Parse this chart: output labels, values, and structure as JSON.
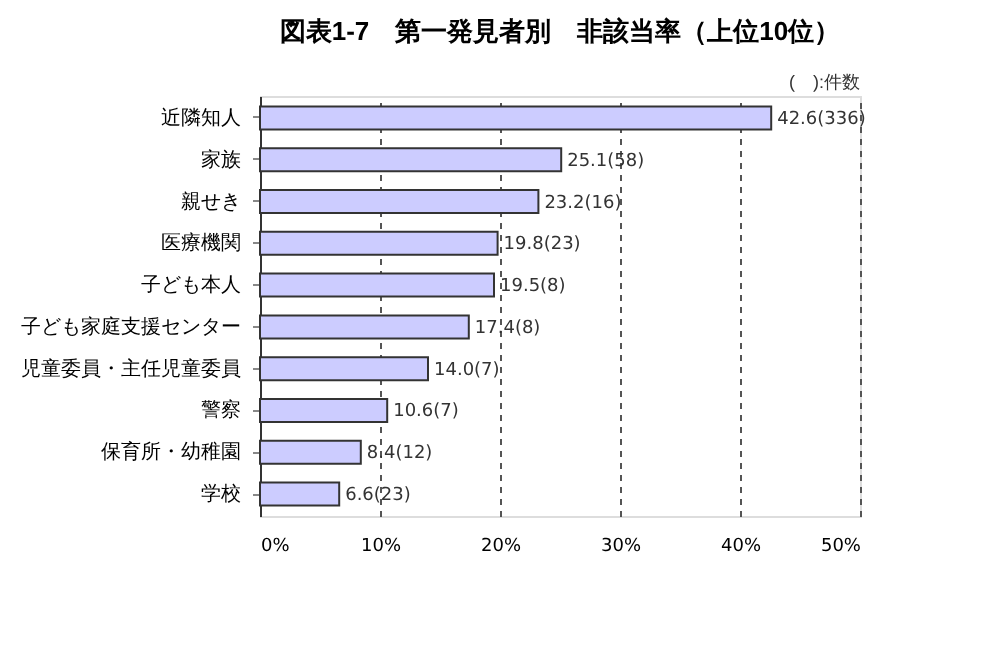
{
  "chart_data": {
    "type": "bar",
    "orientation": "horizontal",
    "title": "図表1-7　第一発見者別　非該当率（上位10位）",
    "categories": [
      "近隣知人",
      "家族",
      "親せき",
      "医療機関",
      "子ども本人",
      "子ども家庭支援センター",
      "児童委員・主任児童委員",
      "警察",
      "保育所・幼稚園",
      "学校"
    ],
    "values": [
      42.6,
      25.1,
      23.2,
      19.8,
      19.5,
      17.4,
      14.0,
      10.6,
      8.4,
      6.6
    ],
    "value_labels": [
      "42.6(336)",
      "25.1(58)",
      "23.2(16)",
      "19.8(23)",
      "19.5(8)",
      "17.4(8)",
      "14.0(7)",
      "10.6(7)",
      "8.4(12)",
      "6.6(23)"
    ],
    "color": "#ccccff",
    "xlim": [
      0,
      50
    ],
    "xticks": [
      {
        "value": 0,
        "label": "0%"
      },
      {
        "value": 10,
        "label": "10%"
      },
      {
        "value": 20,
        "label": "20%"
      },
      {
        "value": 30,
        "label": "30%"
      },
      {
        "value": 40,
        "label": "40%"
      },
      {
        "value": 50,
        "label": "50%"
      }
    ],
    "grid": "x",
    "annotations": [
      "(　):件数"
    ]
  }
}
